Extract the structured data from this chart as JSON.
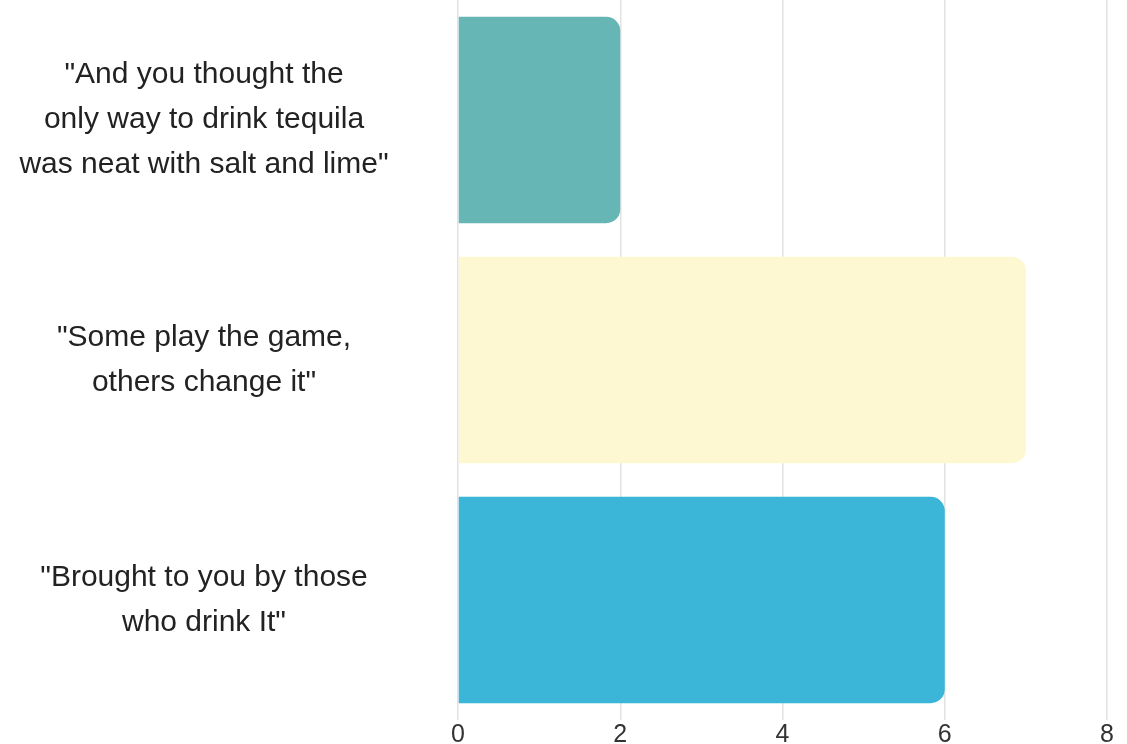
{
  "chart_data": {
    "type": "bar",
    "orientation": "horizontal",
    "categories": [
      "\"And you thought the\nonly way to drink tequila\nwas neat with salt and lime\"",
      "\"Some play the game,\nothers change it\"",
      "\"Brought to you by those\nwho drink It\""
    ],
    "values": [
      2,
      7,
      6
    ],
    "colors": [
      "#66b6b5",
      "#fdf7d2",
      "#3bb6d8"
    ],
    "xlim": [
      0,
      8
    ],
    "xticks": [
      0,
      2,
      4,
      6,
      8
    ],
    "grid": "x"
  }
}
